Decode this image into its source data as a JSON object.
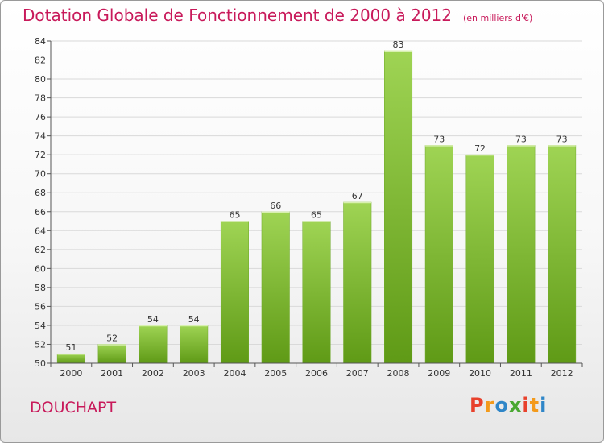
{
  "header": {
    "title": "Dotation Globale de Fonctionnement de 2000 à 2012",
    "unit": "(en milliers d'€)"
  },
  "footer": {
    "commune": "DOUCHAPT",
    "logo_letters": [
      "P",
      "r",
      "o",
      "x",
      "i",
      "t",
      "i"
    ],
    "logo_colors": [
      "#e8412c",
      "#f39a1b",
      "#2f86c8",
      "#4aa832",
      "#e8412c",
      "#f39a1b",
      "#2f86c8"
    ]
  },
  "chart_data": {
    "type": "bar",
    "categories": [
      "2000",
      "2001",
      "2002",
      "2003",
      "2004",
      "2005",
      "2006",
      "2007",
      "2008",
      "2009",
      "2010",
      "2011",
      "2012"
    ],
    "values": [
      51,
      52,
      54,
      54,
      65,
      66,
      65,
      67,
      83,
      73,
      72,
      73,
      73
    ],
    "title": "Dotation Globale de Fonctionnement de 2000 à 2012",
    "ylim": [
      50,
      84
    ],
    "yticks": [
      50,
      52,
      54,
      56,
      58,
      60,
      62,
      64,
      66,
      68,
      70,
      72,
      74,
      76,
      78,
      80,
      82,
      84
    ],
    "grid": true,
    "bar_color_top": "#9fd454",
    "bar_color_bottom": "#5f9a16"
  }
}
